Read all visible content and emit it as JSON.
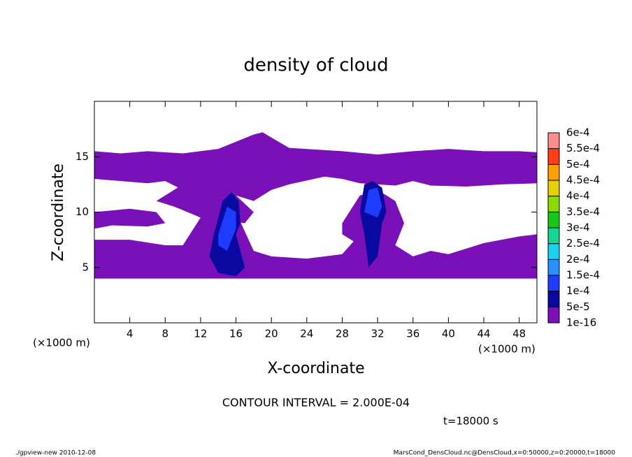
{
  "chart_data": {
    "type": "contour",
    "title": "density of cloud",
    "xlabel": "X-coordinate",
    "ylabel": "Z-coordinate",
    "xunit": "(×1000 m)",
    "yunit": "(×1000 m)",
    "xlim": [
      0,
      50
    ],
    "ylim": [
      0,
      20
    ],
    "xticks": [
      4,
      8,
      12,
      16,
      20,
      24,
      28,
      32,
      36,
      40,
      44,
      48
    ],
    "yticks": [
      5,
      10,
      15
    ],
    "levels": [
      {
        "value": 1e-16,
        "label": "1e-16"
      },
      {
        "value": 5e-05,
        "label": "5e-5"
      },
      {
        "value": 0.0001,
        "label": "1e-4"
      },
      {
        "value": 0.00015,
        "label": "1.5e-4"
      },
      {
        "value": 0.0002,
        "label": "2e-4"
      },
      {
        "value": 0.00025,
        "label": "2.5e-4"
      },
      {
        "value": 0.0003,
        "label": "3e-4"
      },
      {
        "value": 0.00035,
        "label": "3.5e-4"
      },
      {
        "value": 0.0004,
        "label": "4e-4"
      },
      {
        "value": 0.00045,
        "label": "4.5e-4"
      },
      {
        "value": 0.0005,
        "label": "5e-4"
      },
      {
        "value": 0.00055,
        "label": "5.5e-4"
      },
      {
        "value": 0.0006,
        "label": "6e-4"
      }
    ],
    "colors": [
      "#7a10b8",
      "#0a0aa0",
      "#1e3cff",
      "#2890ff",
      "#18d0f0",
      "#10d890",
      "#18c818",
      "#8cdc00",
      "#e6d200",
      "#ffa000",
      "#ff3c14",
      "#ff8c8c"
    ],
    "regions": [
      {
        "level": 1e-16,
        "x": [
          0,
          3,
          6,
          10,
          14,
          18,
          19,
          22,
          28,
          32,
          36,
          40,
          44,
          48,
          50,
          50,
          46,
          42,
          38,
          36,
          34,
          30,
          28,
          26,
          22,
          20,
          18,
          16,
          14,
          12,
          10,
          8,
          6,
          3,
          0
        ],
        "z": [
          15.5,
          15.3,
          15.5,
          15.3,
          15.7,
          17,
          17.2,
          15.8,
          15.5,
          15.2,
          15.5,
          15.7,
          15.5,
          15.5,
          15.4,
          12.6,
          12.5,
          12.3,
          12.4,
          12.8,
          12.4,
          12.6,
          13,
          13.2,
          12.5,
          12,
          11,
          11.5,
          12,
          11.5,
          12,
          12.8,
          12.6,
          12.8,
          13
        ]
      },
      {
        "level": 1e-16,
        "x": [
          0,
          4,
          8,
          10,
          12,
          14,
          16,
          18,
          20,
          24,
          28,
          30,
          34,
          36,
          38,
          40,
          44,
          48,
          50,
          50,
          0
        ],
        "z": [
          7.5,
          7.5,
          7,
          7,
          9.5,
          11,
          10,
          6.5,
          6,
          5.8,
          6.2,
          8,
          7,
          6,
          6.5,
          6.2,
          7.2,
          7.8,
          8,
          4,
          4
        ]
      },
      {
        "level": 1e-16,
        "x": [
          0,
          4,
          7,
          8,
          6,
          2,
          0
        ],
        "z": [
          10,
          10.3,
          10,
          9,
          8.7,
          8.8,
          8.5
        ]
      },
      {
        "level": 1e-16,
        "x": [
          7,
          10,
          12,
          14,
          16,
          18,
          17,
          12,
          9
        ],
        "z": [
          11,
          12.5,
          13,
          12.5,
          11.5,
          10,
          9,
          9.5,
          10.5
        ]
      },
      {
        "level": 1e-16,
        "x": [
          28,
          30,
          32,
          34,
          35,
          34,
          30,
          28
        ],
        "z": [
          9,
          11.5,
          12,
          11,
          9,
          7,
          7,
          8
        ]
      },
      {
        "level": 5e-05,
        "x": [
          13.5,
          14.5,
          15.5,
          16.3,
          16.5,
          16,
          17,
          16,
          14,
          13
        ],
        "z": [
          8,
          11,
          11.8,
          11,
          9,
          8,
          5,
          4.2,
          4.5,
          6
        ]
      },
      {
        "level": 0.0001,
        "x": [
          14,
          15,
          16,
          16,
          15,
          14
        ],
        "z": [
          8,
          10.5,
          10,
          8.5,
          6.5,
          7
        ]
      },
      {
        "level": 5e-05,
        "x": [
          30,
          30.5,
          31.5,
          32.5,
          33,
          32.5,
          32,
          31,
          30.5
        ],
        "z": [
          10,
          12.5,
          12.8,
          12.2,
          10,
          9,
          6,
          5,
          8
        ]
      },
      {
        "level": 0.0001,
        "x": [
          30.5,
          31,
          32,
          32.5,
          32
        ],
        "z": [
          10,
          12,
          12.2,
          10.5,
          9.5
        ]
      }
    ],
    "contour_note": "CONTOUR INTERVAL = 2.000E-04",
    "time_note": "t=18000 s",
    "footer_left": "./gpview-new  2010-12-08",
    "footer_right": "MarsCond_DensCloud.nc@DensCloud,x=0:50000,z=0:20000,t=18000"
  }
}
